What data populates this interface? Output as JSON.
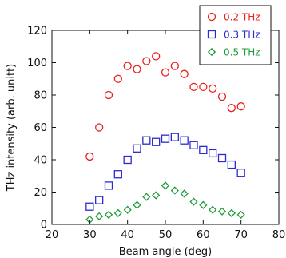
{
  "chart_data": {
    "type": "scatter",
    "title": "",
    "xlabel": "Beam angle (deg)",
    "ylabel": "THz intensity (arb. unitt)",
    "xlim": [
      20,
      80
    ],
    "ylim": [
      0,
      120
    ],
    "xticks": [
      20,
      30,
      40,
      50,
      60,
      70,
      80
    ],
    "yticks": [
      0,
      20,
      40,
      60,
      80,
      100,
      120
    ],
    "grid": false,
    "legend_position": "top-right",
    "series": [
      {
        "name": "0.2 THz",
        "marker": "circle",
        "color": "#e8201e",
        "x": [
          30,
          32.5,
          35,
          37.5,
          40,
          42.5,
          45,
          47.5,
          50,
          52.5,
          55,
          57.5,
          60,
          62.5,
          65,
          67.5,
          70
        ],
        "y": [
          42,
          60,
          80,
          90,
          98,
          96,
          101,
          104,
          94,
          98,
          93,
          85,
          85,
          84,
          79,
          72,
          73
        ]
      },
      {
        "name": "0.3 THz",
        "marker": "square",
        "color": "#2b2bd0",
        "x": [
          30,
          32.5,
          35,
          37.5,
          40,
          42.5,
          45,
          47.5,
          50,
          52.5,
          55,
          57.5,
          60,
          62.5,
          65,
          67.5,
          70
        ],
        "y": [
          11,
          15,
          24,
          31,
          40,
          47,
          52,
          51,
          53,
          54,
          52,
          49,
          46,
          44,
          41,
          37,
          32
        ]
      },
      {
        "name": "0.5 THz",
        "marker": "diamond",
        "color": "#1f9a3a",
        "x": [
          30,
          32.5,
          35,
          37.5,
          40,
          42.5,
          45,
          47.5,
          50,
          52.5,
          55,
          57.5,
          60,
          62.5,
          65,
          67.5,
          70
        ],
        "y": [
          3,
          5,
          6,
          7,
          9,
          12,
          17,
          18,
          24,
          21,
          19,
          14,
          12,
          9,
          8,
          7,
          6
        ]
      }
    ]
  }
}
